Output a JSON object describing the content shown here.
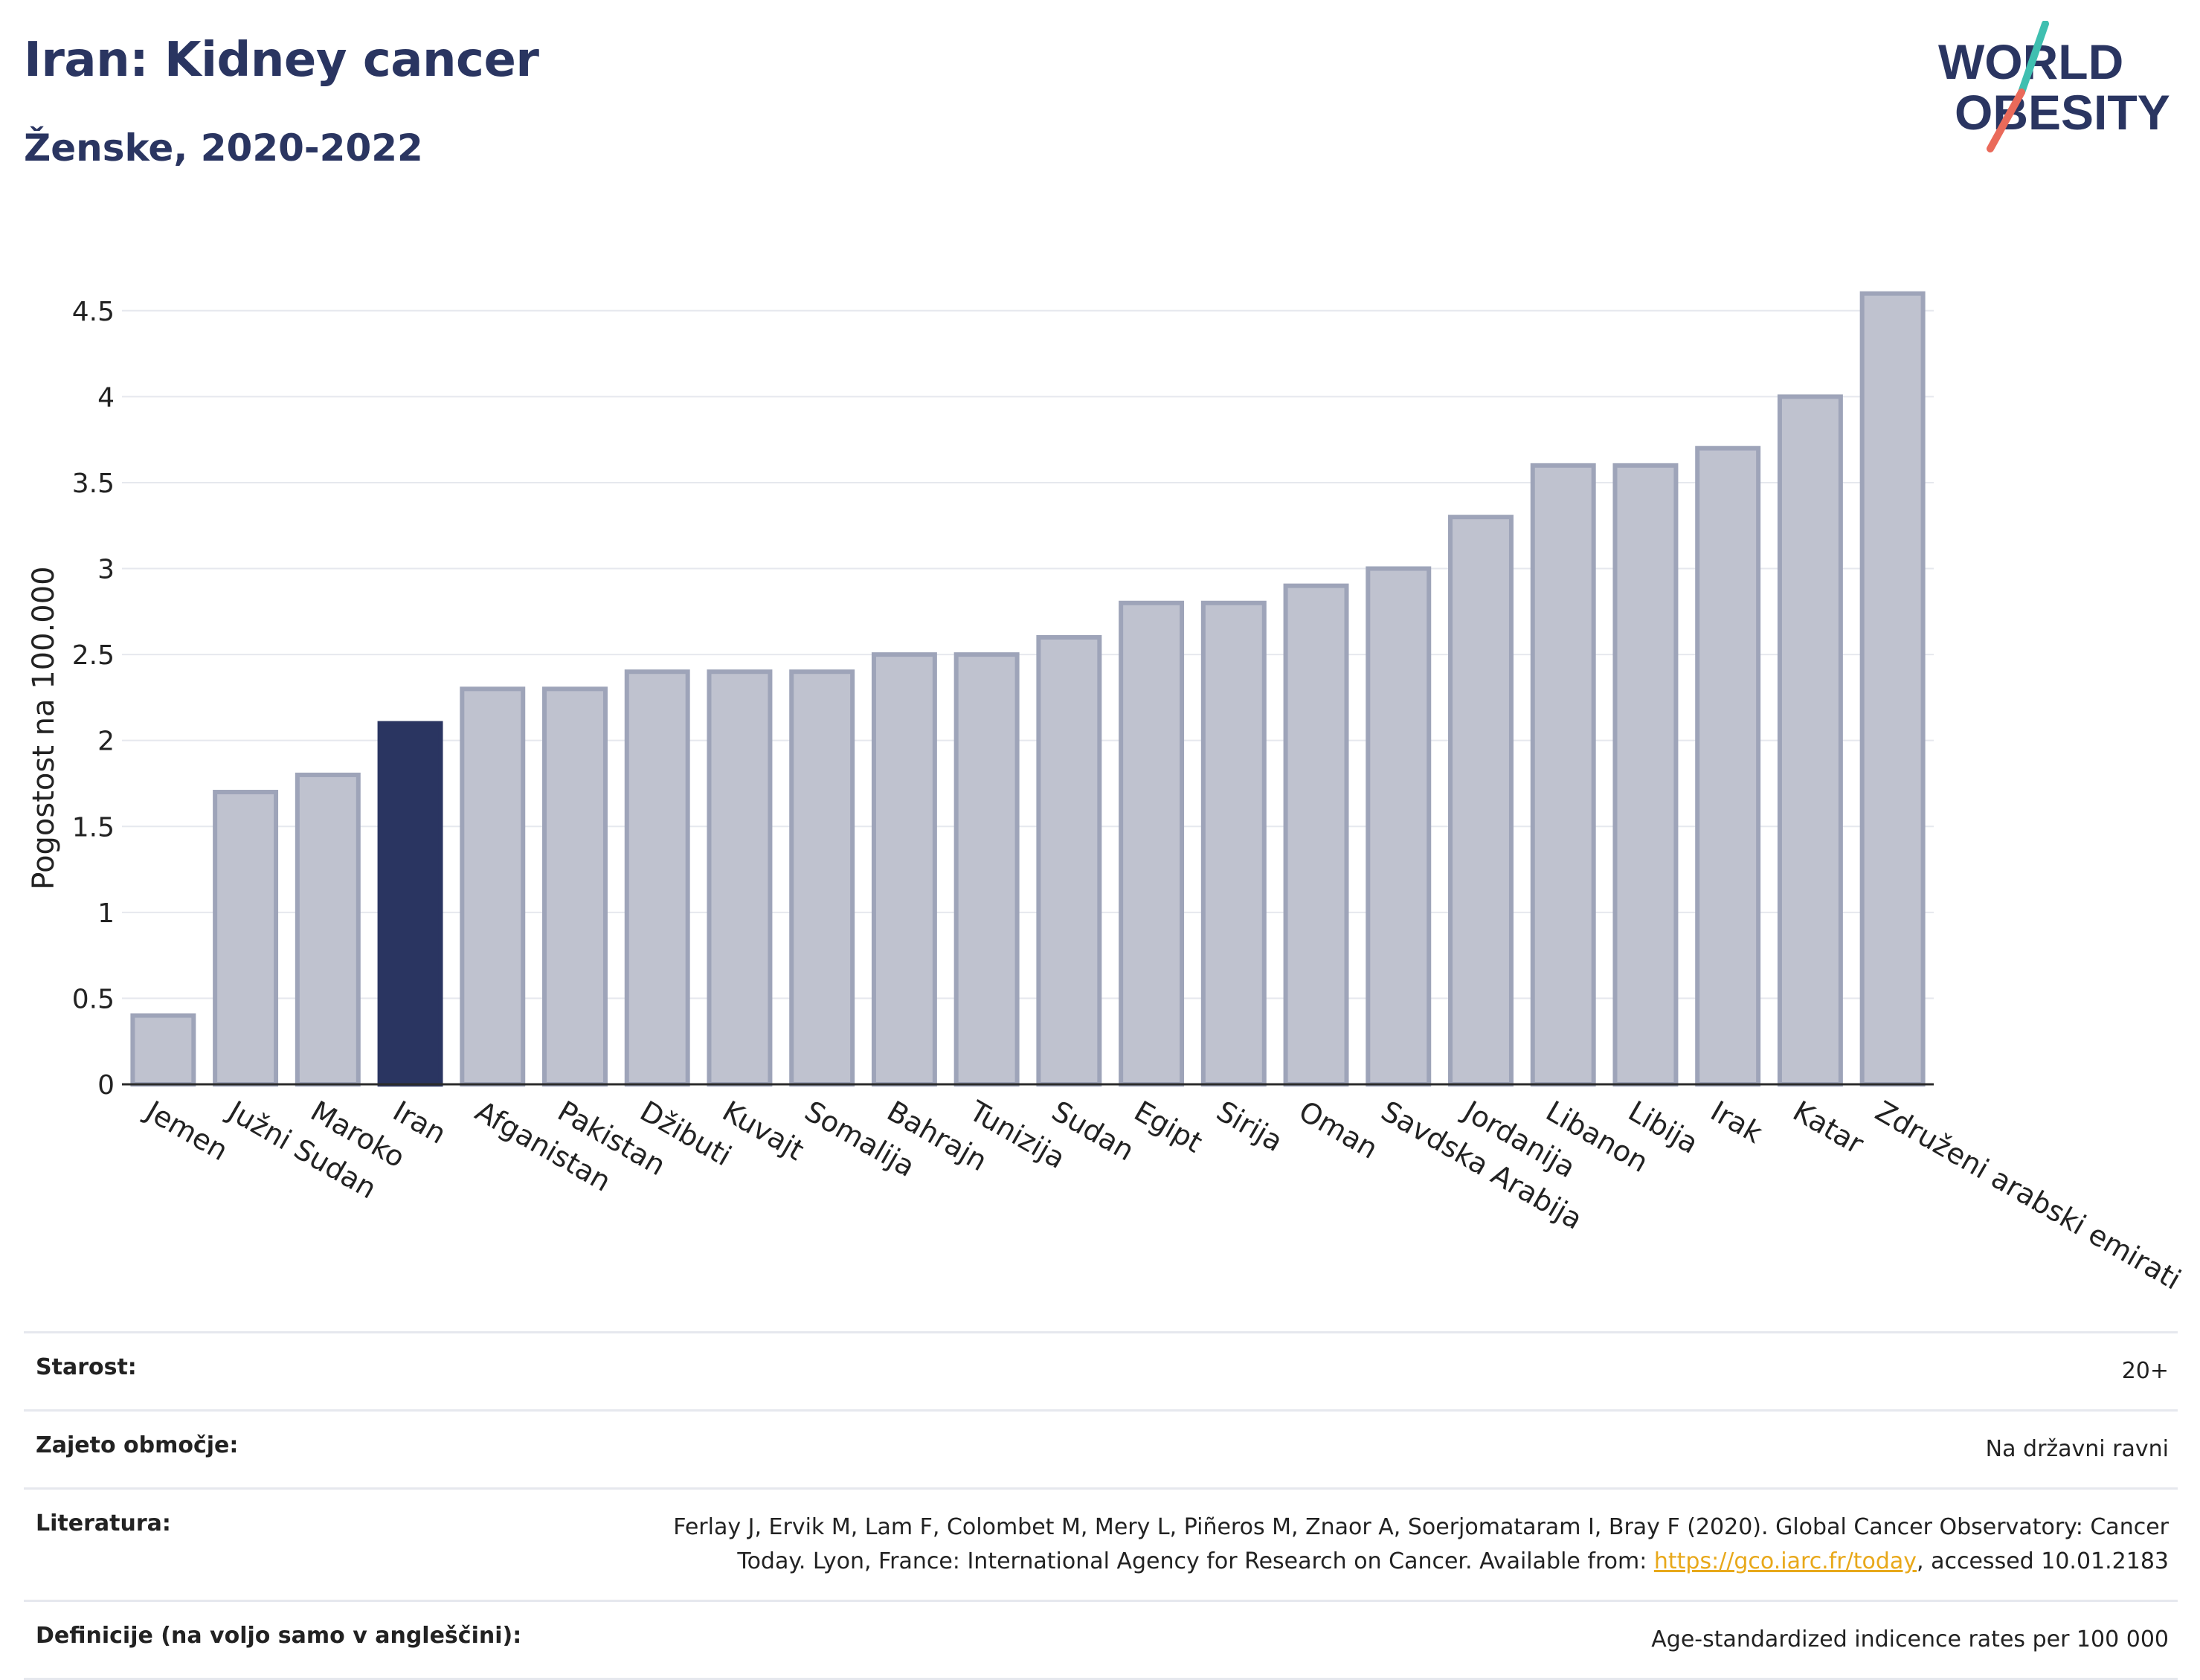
{
  "header": {
    "title": "Iran: Kidney cancer",
    "subtitle": "Ženske, 2020-2022"
  },
  "logo": {
    "line1": "WORLD",
    "line2": "OBESITY"
  },
  "chart_data": {
    "type": "bar",
    "title": "Iran: Kidney cancer",
    "subtitle": "Ženske, 2020-2022",
    "ylabel": "Pogostost na 100.000",
    "xlabel": "",
    "ylim": [
      0,
      4.75
    ],
    "yticks": [
      {
        "v": 0,
        "label": "0"
      },
      {
        "v": 0.5,
        "label": "0.5"
      },
      {
        "v": 1,
        "label": "1"
      },
      {
        "v": 1.5,
        "label": "1.5"
      },
      {
        "v": 2,
        "label": "2"
      },
      {
        "v": 2.5,
        "label": "2.5"
      },
      {
        "v": 3,
        "label": "3"
      },
      {
        "v": 3.5,
        "label": "3.5"
      },
      {
        "v": 4,
        "label": "4"
      },
      {
        "v": 4.5,
        "label": "4.5"
      }
    ],
    "grid": true,
    "highlight": "Iran",
    "colors": {
      "bar": "#bfc2cf",
      "bar_outline": "#9ea4b9",
      "highlight": "#2a3561",
      "grid": "#e6e8ee",
      "axis": "#2b2b2b"
    },
    "categories": [
      "Jemen",
      "Južni Sudan",
      "Maroko",
      "Iran",
      "Afganistan",
      "Pakistan",
      "Džibuti",
      "Kuvajt",
      "Somalija",
      "Bahrajn",
      "Tunizija",
      "Sudan",
      "Egipt",
      "Sirija",
      "Oman",
      "Savdska Arabija",
      "Jordanija",
      "Libanon",
      "Libija",
      "Irak",
      "Katar",
      "Združeni arabski emirati"
    ],
    "values": [
      0.4,
      1.7,
      1.8,
      2.1,
      2.3,
      2.3,
      2.4,
      2.4,
      2.4,
      2.5,
      2.5,
      2.6,
      2.8,
      2.8,
      2.9,
      3.0,
      3.3,
      3.6,
      3.6,
      3.7,
      4.0,
      4.6
    ]
  },
  "info": [
    {
      "label": "Starost:",
      "value": "20+"
    },
    {
      "label": "Zajeto območje:",
      "value": "Na državni ravni"
    },
    {
      "label": "Literatura:",
      "value_line1": "Ferlay J, Ervik M, Lam F, Colombet M, Mery L, Piñeros M, Znaor A, Soerjomataram I, Bray F (2020). Global Cancer Observatory: Cancer",
      "value_line2_pre": "Today. Lyon, France: International Agency for Research on Cancer. Available from: ",
      "link": "https://gco.iarc.fr/today",
      "value_line2_post": ", accessed 10.01.2183"
    },
    {
      "label": "Definicije (na voljo samo v angleščini):",
      "value": "Age-standardized indicence rates per 100 000"
    }
  ]
}
